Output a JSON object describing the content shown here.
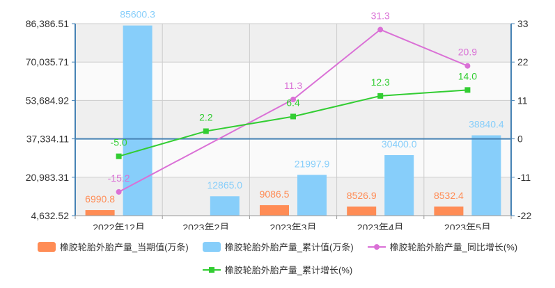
{
  "chart_data": {
    "type": "bar",
    "categories": [
      "2022年12月",
      "2023年2月",
      "2023年3月",
      "2023年4月",
      "2023年5月"
    ],
    "y_left_ticks": [
      "86,386.51",
      "70,035.71",
      "53,684.92",
      "37,334.11",
      "20,983.31",
      "4,632.52"
    ],
    "y_right_ticks": [
      "33",
      "22",
      "11",
      "0",
      "-11",
      "-22"
    ],
    "ylim_left": [
      4632.52,
      86386.51
    ],
    "ylim_right": [
      -22,
      33
    ],
    "series": [
      {
        "name": "橡胶轮胎外胎产量_当期值(万条)",
        "kind": "bar",
        "axis": "left",
        "color": "#FF8C55",
        "values": [
          6990.8,
          null,
          9086.5,
          8526.9,
          8532.4
        ],
        "labels": [
          "6990.8",
          "",
          "9086.5",
          "8526.9",
          "8532.4"
        ]
      },
      {
        "name": "橡胶轮胎外胎产量_累计值(万条)",
        "kind": "bar",
        "axis": "left",
        "color": "#87CEFA",
        "values": [
          85600.3,
          12865.0,
          21997.9,
          30400.0,
          38840.4
        ],
        "labels": [
          "85600.3",
          "12865.0",
          "21997.9",
          "30400.0",
          "38840.4"
        ]
      },
      {
        "name": "橡胶轮胎外胎产量_同比增长(%)",
        "kind": "line",
        "axis": "right",
        "color": "#DA70D6",
        "marker": "circle",
        "values": [
          -15.2,
          null,
          11.3,
          31.3,
          20.9
        ],
        "labels": [
          "-15.2",
          "",
          "11.3",
          "31.3",
          "20.9"
        ]
      },
      {
        "name": "橡胶轮胎外胎产量_累计增长(%)",
        "kind": "line",
        "axis": "right",
        "color": "#32CD32",
        "marker": "square",
        "values": [
          -5.0,
          2.2,
          6.4,
          12.3,
          14.0
        ],
        "labels": [
          "-5.0",
          "2.2",
          "6.4",
          "12.3",
          "14.0"
        ]
      }
    ],
    "grid": true,
    "legend_position": "bottom"
  },
  "colors": {
    "grid": "#cccccc",
    "axis": "#4682B4",
    "band_dark": "#efefef",
    "band_light": "#fafafa"
  }
}
